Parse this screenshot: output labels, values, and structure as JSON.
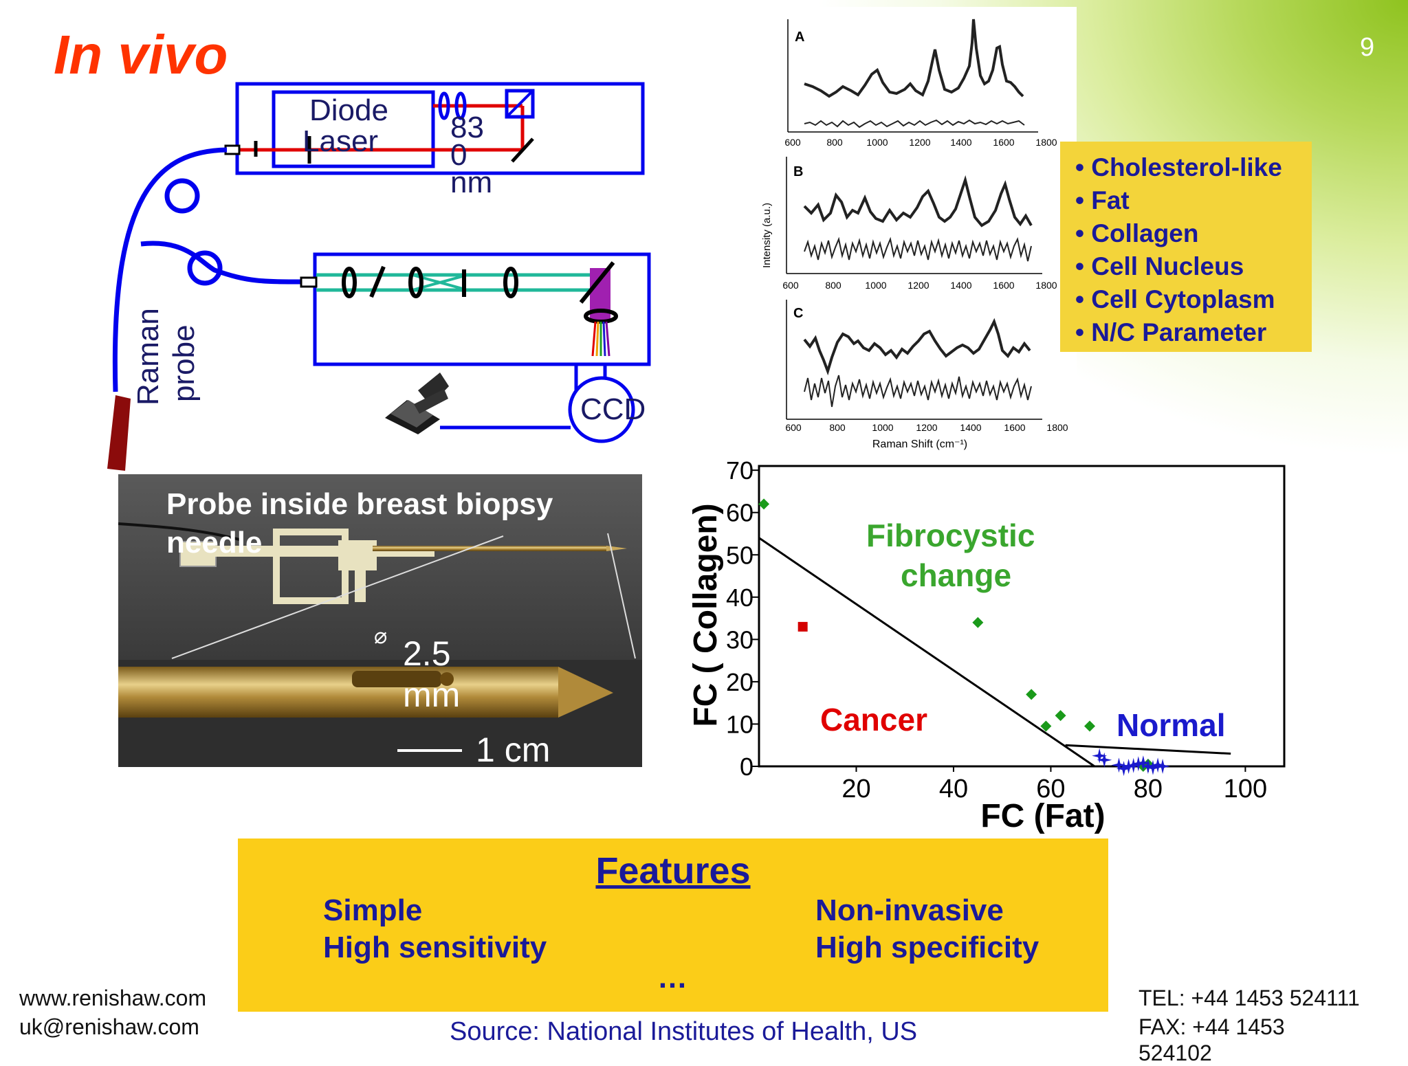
{
  "title": "In vivo",
  "page_number": "9",
  "schematic": {
    "diode_label_line1": "Diode",
    "diode_label_line2": "Laser",
    "wavelength_line1": "83",
    "wavelength_line2": "0",
    "wavelength_line3": "nm",
    "probe_label_line1": "Raman",
    "probe_label_line2": "probe",
    "ccd_label": "CCD"
  },
  "spectra": {
    "panel_a_label": "A",
    "panel_b_label": "B",
    "panel_c_label": "C",
    "x_ticks": [
      "600",
      "800",
      "1000",
      "1200",
      "1400",
      "1600",
      "1800"
    ],
    "ylabel": "Intensity (a.u.)",
    "xlabel": "Raman Shift (cm⁻¹)"
  },
  "components": [
    "Cholesterol-like",
    "Fat",
    "Collagen",
    "Cell Nucleus",
    "Cell Cytoplasm",
    "N/C Parameter"
  ],
  "photo": {
    "title": "Probe inside breast biopsy needle",
    "diameter_symbol": "⌀",
    "diameter_value": "2.5",
    "diameter_unit": "mm",
    "scale_label": "1 cm"
  },
  "chart_data": {
    "type": "scatter",
    "xlabel": "FC (Fat)",
    "ylabel": "FC ( Collagen)",
    "x_ticks": [
      "20",
      "40",
      "60",
      "80",
      "100"
    ],
    "y_ticks": [
      "0",
      "10",
      "20",
      "30",
      "40",
      "50",
      "60",
      "70"
    ],
    "xlim": [
      0,
      108
    ],
    "ylim": [
      0,
      71
    ],
    "series": [
      {
        "color": "#d40000",
        "marker": "square",
        "points": [
          [
            9,
            33
          ]
        ]
      },
      {
        "color": "#1a9a1a",
        "marker": "diamond",
        "points": [
          [
            1,
            62
          ],
          [
            45,
            34
          ],
          [
            56,
            17
          ],
          [
            59,
            9.5
          ],
          [
            62,
            12
          ],
          [
            68,
            9.5
          ],
          [
            79,
            0
          ],
          [
            80,
            0.5
          ]
        ]
      },
      {
        "color": "#1a1acc",
        "marker": "star",
        "points": [
          [
            70,
            2.5
          ],
          [
            71,
            1.5
          ],
          [
            74,
            0.3
          ],
          [
            75,
            -0.5
          ],
          [
            76,
            0
          ],
          [
            77,
            0.2
          ],
          [
            78,
            0.6
          ],
          [
            79,
            0.8
          ],
          [
            80,
            0
          ],
          [
            81,
            -0.3
          ],
          [
            82,
            0.3
          ],
          [
            83,
            0
          ]
        ]
      }
    ],
    "boundaries": [
      {
        "from": [
          0,
          54
        ],
        "to": [
          69,
          0
        ]
      },
      {
        "from": [
          63,
          5
        ],
        "to": [
          97,
          3
        ]
      }
    ],
    "region_labels": [
      {
        "text": "Fibrocystic\nchange",
        "color": "#3aa62e"
      },
      {
        "text": "Cancer",
        "color": "#e00000"
      },
      {
        "text": "Normal",
        "color": "#1a1acc"
      }
    ]
  },
  "features": {
    "title": "Features",
    "left": [
      "Simple",
      "High sensitivity"
    ],
    "right": [
      "Non-invasive",
      "High specificity"
    ],
    "more": "…"
  },
  "footer": {
    "website": "www.renishaw.com",
    "email": "uk@renishaw.com",
    "tel": "TEL:  +44 1453 524111",
    "fax_line1": "FAX:  +44 1453",
    "fax_line2": "524102"
  },
  "source": "Source: National Institutes of Health, US"
}
